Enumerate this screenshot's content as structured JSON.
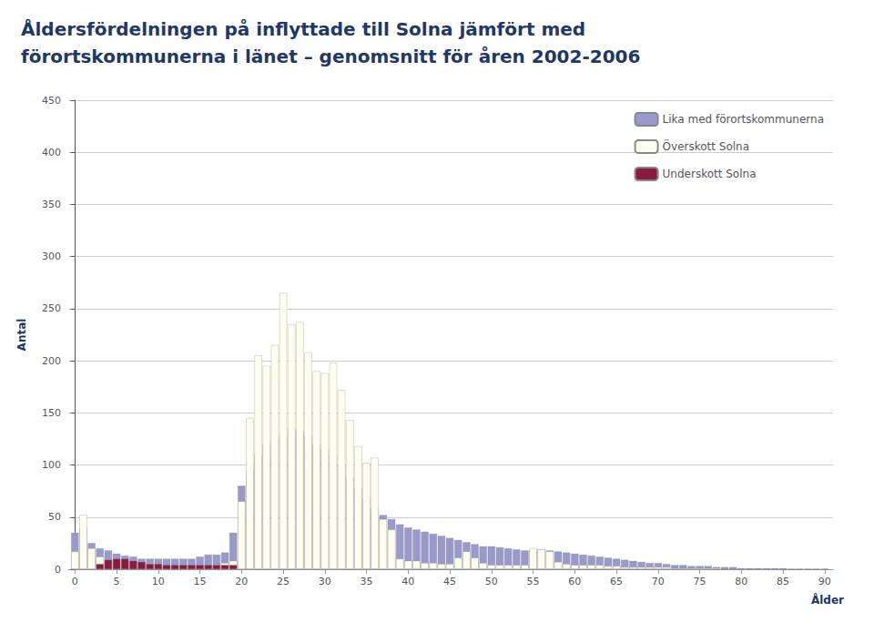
{
  "chart_data": {
    "type": "bar",
    "title": "Åldersfördelningen på inflyttade till Solna jämfört med\nförortskommunerna i länet – genomsnitt för åren 2002-2006",
    "xlabel": "Ålder",
    "ylabel": "Antal",
    "x": [
      0,
      1,
      2,
      3,
      4,
      5,
      6,
      7,
      8,
      9,
      10,
      11,
      12,
      13,
      14,
      15,
      16,
      17,
      18,
      19,
      20,
      21,
      22,
      23,
      24,
      25,
      26,
      27,
      28,
      29,
      30,
      31,
      32,
      33,
      34,
      35,
      36,
      37,
      38,
      39,
      40,
      41,
      42,
      43,
      44,
      45,
      46,
      47,
      48,
      49,
      50,
      51,
      52,
      53,
      54,
      55,
      56,
      57,
      58,
      59,
      60,
      61,
      62,
      63,
      64,
      65,
      66,
      67,
      68,
      69,
      70,
      71,
      72,
      73,
      74,
      75,
      76,
      77,
      78,
      79,
      80,
      81,
      82,
      83,
      84,
      85,
      86,
      87,
      88,
      89,
      90
    ],
    "series": [
      {
        "name": "Lika med förortskommunerna",
        "color": "#9999CC",
        "values": [
          35,
          40,
          25,
          20,
          18,
          15,
          13,
          12,
          10,
          10,
          10,
          10,
          10,
          10,
          10,
          12,
          14,
          14,
          16,
          35,
          80,
          95,
          110,
          120,
          125,
          130,
          135,
          133,
          128,
          120,
          115,
          110,
          100,
          88,
          78,
          68,
          58,
          52,
          48,
          43,
          40,
          38,
          36,
          34,
          32,
          30,
          28,
          26,
          24,
          22,
          22,
          21,
          20,
          19,
          18,
          19,
          19,
          18,
          17,
          16,
          15,
          14,
          13,
          12,
          11,
          10,
          9,
          8,
          7,
          6,
          6,
          5,
          4,
          4,
          3,
          3,
          3,
          2,
          2,
          2,
          1,
          1,
          1,
          1,
          1,
          1,
          0,
          0,
          0,
          0,
          0
        ]
      },
      {
        "name": "Överskott Solna",
        "color": "#FFFFF0",
        "values": [
          17,
          52,
          20,
          12,
          8,
          7,
          5,
          5,
          4,
          3,
          3,
          3,
          3,
          3,
          3,
          3,
          3,
          4,
          6,
          8,
          65,
          145,
          205,
          195,
          215,
          265,
          235,
          237,
          208,
          190,
          188,
          198,
          172,
          143,
          118,
          102,
          107,
          48,
          38,
          10,
          8,
          8,
          6,
          6,
          5,
          5,
          11,
          17,
          11,
          6,
          4,
          4,
          4,
          4,
          4,
          20,
          19,
          17,
          7,
          5,
          4,
          4,
          4,
          4,
          3,
          3,
          2,
          2,
          2,
          2,
          2,
          2,
          1,
          1,
          1,
          1,
          1,
          1,
          0,
          0,
          0,
          0,
          0,
          0,
          0,
          0,
          0,
          0,
          0,
          0,
          0
        ]
      },
      {
        "name": "Underskott Solna",
        "color": "#8B1A3E",
        "values": [
          0,
          0,
          0,
          5,
          9,
          10,
          10,
          8,
          7,
          5,
          5,
          4,
          4,
          4,
          4,
          4,
          4,
          4,
          4,
          4,
          0,
          0,
          0,
          0,
          0,
          0,
          0,
          0,
          0,
          0,
          0,
          0,
          0,
          0,
          0,
          0,
          0,
          0,
          0,
          0,
          0,
          0,
          0,
          0,
          0,
          0,
          0,
          0,
          0,
          0,
          0,
          0,
          0,
          0,
          0,
          0,
          0,
          0,
          0,
          0,
          0,
          0,
          0,
          0,
          0,
          0,
          0,
          0,
          0,
          0,
          0,
          0,
          0,
          0,
          0,
          0,
          0,
          0,
          0,
          0,
          0,
          0,
          0,
          0,
          0,
          0,
          0,
          0,
          0,
          0,
          0
        ]
      }
    ],
    "stacked": true,
    "xlim": [
      -0.8,
      91
    ],
    "xticks": [
      0,
      5,
      10,
      15,
      20,
      25,
      30,
      35,
      40,
      45,
      50,
      55,
      60,
      65,
      70,
      75,
      80,
      85,
      90
    ],
    "ylim": [
      0,
      450
    ],
    "yticks": [
      0,
      50,
      100,
      150,
      200,
      250,
      300,
      350,
      400,
      450
    ],
    "grid": true,
    "legend": "upper right"
  }
}
